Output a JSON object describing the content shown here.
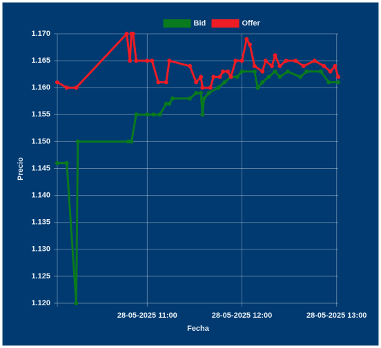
{
  "chart_data": {
    "type": "line",
    "x_label": "Fecha",
    "y_label": "Precio",
    "xlim": [
      "2025-05-28 10:03",
      "2025-05-28 13:01"
    ],
    "xticks": [
      {
        "value": "2025-05-28 11:00",
        "label": "28-05-2025 11:00"
      },
      {
        "value": "2025-05-28 12:00",
        "label": "28-05-2025 12:00"
      },
      {
        "value": "2025-05-28 13:00",
        "label": "28-05-2025 13:00"
      }
    ],
    "ylim": [
      1.12,
      1.17
    ],
    "yticks": [
      {
        "value": 1.12,
        "label": "1.120"
      },
      1.125,
      {
        "value": 1.13,
        "label": "1.130"
      },
      1.135,
      {
        "value": 1.14,
        "label": "1.140"
      },
      1.145,
      {
        "value": 1.15,
        "label": "1.150"
      },
      1.155,
      {
        "value": 1.16,
        "label": "1.160"
      },
      1.165,
      {
        "value": 1.17,
        "label": "1.170"
      }
    ],
    "grid": true,
    "legend": "top",
    "series": [
      {
        "name": "Bid",
        "color": "#0a7a1e",
        "x": [
          "2025-05-28 10:03",
          "2025-05-28 10:09",
          "2025-05-28 10:15",
          "2025-05-28 10:16",
          "2025-05-28 10:48",
          "2025-05-28 10:50",
          "2025-05-28 10:53",
          "2025-05-28 11:00",
          "2025-05-28 11:04",
          "2025-05-28 11:08",
          "2025-05-28 11:12",
          "2025-05-28 11:14",
          "2025-05-28 11:16",
          "2025-05-28 11:27",
          "2025-05-28 11:31",
          "2025-05-28 11:34",
          "2025-05-28 11:35",
          "2025-05-28 11:36",
          "2025-05-28 11:39",
          "2025-05-28 11:45",
          "2025-05-28 11:49",
          "2025-05-28 11:53",
          "2025-05-28 11:57",
          "2025-05-28 12:00",
          "2025-05-28 12:08",
          "2025-05-28 12:10",
          "2025-05-28 12:13",
          "2025-05-28 12:17",
          "2025-05-28 12:21",
          "2025-05-28 12:24",
          "2025-05-28 12:29",
          "2025-05-28 12:37",
          "2025-05-28 12:41",
          "2025-05-28 12:50",
          "2025-05-28 12:55",
          "2025-05-28 13:01"
        ],
        "values": [
          1.146,
          1.146,
          1.12,
          1.15,
          1.15,
          1.15,
          1.155,
          1.155,
          1.155,
          1.155,
          1.157,
          1.157,
          1.158,
          1.158,
          1.159,
          1.159,
          1.155,
          1.158,
          1.159,
          1.16,
          1.161,
          1.162,
          1.162,
          1.163,
          1.163,
          1.16,
          1.161,
          1.162,
          1.163,
          1.162,
          1.163,
          1.162,
          1.163,
          1.163,
          1.161,
          1.161
        ]
      },
      {
        "name": "Offer",
        "color": "#ee1c25",
        "x": [
          "2025-05-28 10:03",
          "2025-05-28 10:09",
          "2025-05-28 10:15",
          "2025-05-28 10:47",
          "2025-05-28 10:49",
          "2025-05-28 10:50",
          "2025-05-28 10:51",
          "2025-05-28 10:53",
          "2025-05-28 11:00",
          "2025-05-28 11:03",
          "2025-05-28 11:07",
          "2025-05-28 11:12",
          "2025-05-28 11:14",
          "2025-05-28 11:27",
          "2025-05-28 11:31",
          "2025-05-28 11:34",
          "2025-05-28 11:35",
          "2025-05-28 11:40",
          "2025-05-28 11:42",
          "2025-05-28 11:46",
          "2025-05-28 11:48",
          "2025-05-28 11:51",
          "2025-05-28 11:53",
          "2025-05-28 11:56",
          "2025-05-28 12:00",
          "2025-05-28 12:03",
          "2025-05-28 12:05",
          "2025-05-28 12:08",
          "2025-05-28 12:13",
          "2025-05-28 12:15",
          "2025-05-28 12:19",
          "2025-05-28 12:21",
          "2025-05-28 12:24",
          "2025-05-28 12:28",
          "2025-05-28 12:34",
          "2025-05-28 12:39",
          "2025-05-28 12:46",
          "2025-05-28 12:52",
          "2025-05-28 12:56",
          "2025-05-28 12:59",
          "2025-05-28 13:01"
        ],
        "values": [
          1.161,
          1.16,
          1.16,
          1.17,
          1.165,
          1.17,
          1.17,
          1.165,
          1.165,
          1.165,
          1.161,
          1.161,
          1.165,
          1.164,
          1.161,
          1.162,
          1.16,
          1.16,
          1.162,
          1.162,
          1.163,
          1.163,
          1.162,
          1.165,
          1.165,
          1.169,
          1.168,
          1.164,
          1.163,
          1.165,
          1.164,
          1.166,
          1.164,
          1.165,
          1.165,
          1.164,
          1.165,
          1.164,
          1.163,
          1.164,
          1.162
        ]
      }
    ]
  }
}
